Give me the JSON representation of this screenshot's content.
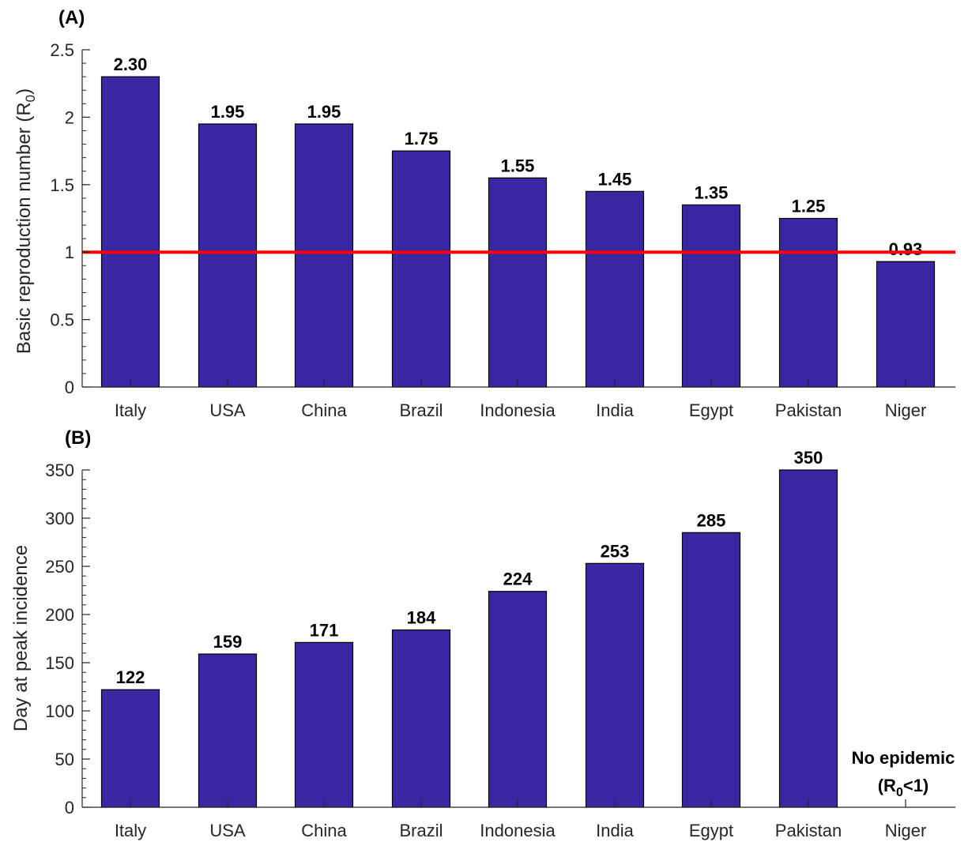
{
  "chart_data": [
    {
      "type": "bar",
      "panel_label": "(A)",
      "categories": [
        "Italy",
        "USA",
        "China",
        "Brazil",
        "Indonesia",
        "India",
        "Egypt",
        "Pakistan",
        "Niger"
      ],
      "values": [
        2.3,
        1.95,
        1.95,
        1.75,
        1.55,
        1.45,
        1.35,
        1.25,
        0.93
      ],
      "value_labels": [
        "2.30",
        "1.95",
        "1.95",
        "1.75",
        "1.55",
        "1.45",
        "1.35",
        "1.25",
        "0.93"
      ],
      "ylabel": "Basic reproduction number (R",
      "ylabel_subscript": "0",
      "ylabel_suffix": ")",
      "ylim": [
        0,
        2.5
      ],
      "yticks": [
        0,
        0.5,
        1,
        1.5,
        2,
        2.5
      ],
      "ytick_labels": [
        "0",
        "0.5",
        "1",
        "1.5",
        "2",
        "2.5"
      ],
      "reference_line": {
        "y": 1,
        "color": "#ff0000"
      },
      "bar_color": "#3a27a3",
      "grid": false
    },
    {
      "type": "bar",
      "panel_label": "(B)",
      "categories": [
        "Italy",
        "USA",
        "China",
        "Brazil",
        "Indonesia",
        "India",
        "Egypt",
        "Pakistan",
        "Niger"
      ],
      "values": [
        122,
        159,
        171,
        184,
        224,
        253,
        285,
        350,
        null
      ],
      "value_labels": [
        "122",
        "159",
        "171",
        "184",
        "224",
        "253",
        "285",
        "350",
        ""
      ],
      "ylabel": "Day at peak incidence",
      "ylim": [
        0,
        350
      ],
      "yticks": [
        0,
        50,
        100,
        150,
        200,
        250,
        300,
        350
      ],
      "ytick_labels": [
        "0",
        "50",
        "100",
        "150",
        "200",
        "250",
        "300",
        "350"
      ],
      "annotation": {
        "line1": "No epidemic",
        "line2_prefix": "(R",
        "line2_sub": "0",
        "line2_suffix": "<1)"
      },
      "bar_color": "#3a27a3",
      "grid": false
    }
  ]
}
